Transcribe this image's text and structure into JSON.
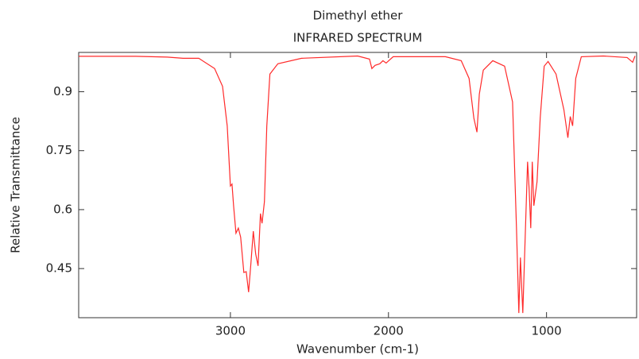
{
  "chart_data": {
    "type": "line",
    "title": "Dimethyl ether",
    "subtitle": "INFRARED SPECTRUM",
    "x_label": "Wavenumber (cm-1)",
    "y_label": "Relative Transmittance",
    "color": "#ff2a2a",
    "x": [
      3960,
      3800,
      3600,
      3400,
      3300,
      3200,
      3100,
      3050,
      3020,
      3000,
      2990,
      2980,
      2965,
      2950,
      2935,
      2915,
      2900,
      2885,
      2870,
      2855,
      2840,
      2825,
      2810,
      2800,
      2785,
      2770,
      2750,
      2700,
      2550,
      2195,
      2120,
      2105,
      2085,
      2055,
      2035,
      2015,
      1970,
      1640,
      1540,
      1490,
      1460,
      1440,
      1425,
      1400,
      1340,
      1265,
      1215,
      1190,
      1175,
      1165,
      1150,
      1135,
      1120,
      1110,
      1100,
      1090,
      1080,
      1060,
      1040,
      1015,
      990,
      940,
      890,
      865,
      850,
      835,
      815,
      780,
      640,
      490,
      455,
      440
    ],
    "values": [
      0.99,
      0.99,
      0.99,
      0.988,
      0.985,
      0.985,
      0.959,
      0.914,
      0.813,
      0.66,
      0.665,
      0.61,
      0.54,
      0.553,
      0.53,
      0.44,
      0.442,
      0.39,
      0.466,
      0.545,
      0.487,
      0.457,
      0.59,
      0.565,
      0.62,
      0.813,
      0.945,
      0.971,
      0.985,
      0.991,
      0.983,
      0.959,
      0.967,
      0.971,
      0.979,
      0.973,
      0.989,
      0.989,
      0.979,
      0.934,
      0.833,
      0.797,
      0.894,
      0.955,
      0.979,
      0.965,
      0.874,
      0.549,
      0.337,
      0.478,
      0.337,
      0.53,
      0.722,
      0.651,
      0.553,
      0.722,
      0.61,
      0.671,
      0.833,
      0.965,
      0.977,
      0.945,
      0.854,
      0.783,
      0.837,
      0.813,
      0.934,
      0.989,
      0.991,
      0.987,
      0.975,
      0.991
    ],
    "xlim": [
      3960,
      430
    ],
    "ylim": [
      0.325,
      1.0
    ],
    "xticks": [
      3000,
      2000,
      1000
    ],
    "yticks": [
      0.9,
      0.75,
      0.6,
      0.45
    ]
  }
}
